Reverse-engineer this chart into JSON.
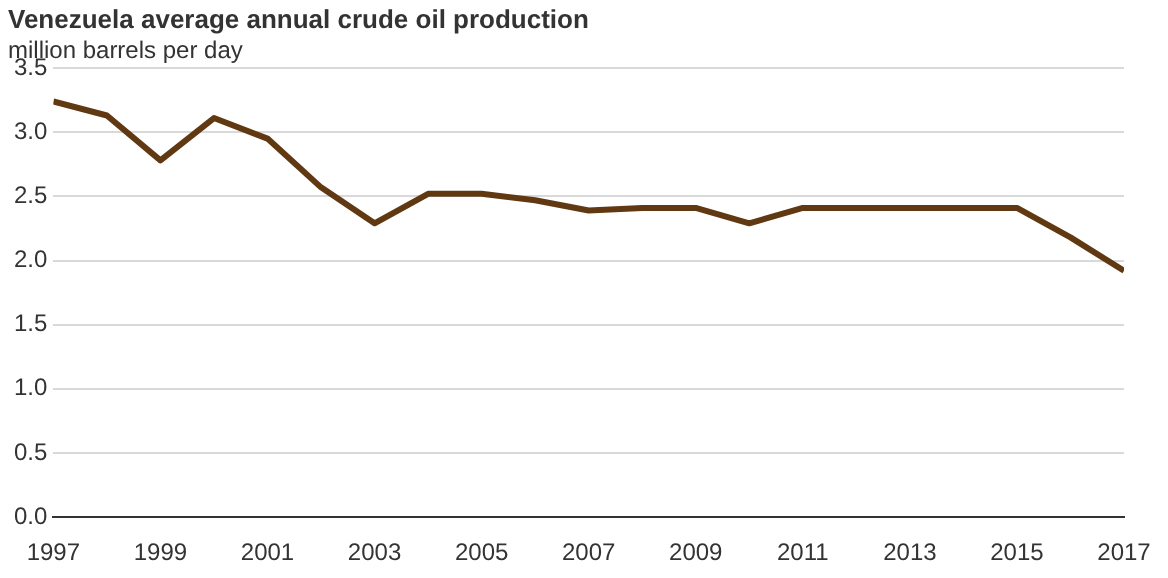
{
  "chart_data": {
    "type": "line",
    "title": "Venezuela average annual crude oil production",
    "subtitle": "million barrels per day",
    "x": [
      1997,
      1998,
      1999,
      2000,
      2001,
      2002,
      2003,
      2004,
      2005,
      2006,
      2007,
      2008,
      2009,
      2010,
      2011,
      2012,
      2013,
      2014,
      2015,
      2016,
      2017
    ],
    "series": [
      {
        "color": "#603913",
        "values": [
          3.24,
          3.13,
          2.78,
          3.11,
          2.95,
          2.57,
          2.29,
          2.52,
          2.52,
          2.47,
          2.39,
          2.41,
          2.41,
          2.29,
          2.41,
          2.41,
          2.41,
          2.41,
          2.41,
          2.18,
          1.92
        ]
      }
    ],
    "xlim": [
      1997,
      2017
    ],
    "xticks": [
      1997,
      1999,
      2001,
      2003,
      2005,
      2007,
      2009,
      2011,
      2013,
      2015,
      2017
    ],
    "ylim": [
      0,
      3.5
    ],
    "yticks": [
      {
        "value": 0,
        "label": "0.0"
      },
      {
        "value": 0.5,
        "label": "0.5"
      },
      {
        "value": 1,
        "label": "1.0"
      },
      {
        "value": 1.5,
        "label": "1.5"
      },
      {
        "value": 2,
        "label": "2.0"
      },
      {
        "value": 2.5,
        "label": "2.5"
      },
      {
        "value": 3,
        "label": "3.0"
      },
      {
        "value": 3.5,
        "label": "3.5"
      }
    ],
    "grid": "y",
    "legend": false,
    "marker": "none",
    "line_style": "solid"
  }
}
